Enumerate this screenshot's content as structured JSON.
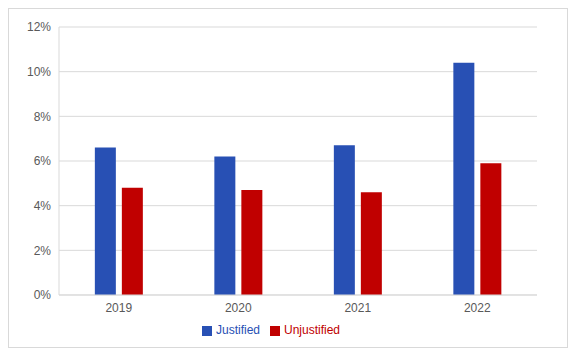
{
  "chart_data": {
    "type": "bar",
    "categories": [
      "2019",
      "2020",
      "2021",
      "2022"
    ],
    "series": [
      {
        "name": "Justified",
        "color": "#2850b4",
        "values": [
          6.6,
          6.2,
          6.7,
          10.4
        ]
      },
      {
        "name": "Unjustified",
        "color": "#c00000",
        "values": [
          4.8,
          4.7,
          4.6,
          5.9
        ]
      }
    ],
    "ylim": [
      0,
      12
    ],
    "yticks": [
      {
        "value": 0,
        "label": "0%"
      },
      {
        "value": 2,
        "label": "2%"
      },
      {
        "value": 4,
        "label": "4%"
      },
      {
        "value": 6,
        "label": "6%"
      },
      {
        "value": 8,
        "label": "8%"
      },
      {
        "value": 10,
        "label": "10%"
      },
      {
        "value": 12,
        "label": "12%"
      }
    ],
    "grid": true,
    "legend": "bottom"
  }
}
